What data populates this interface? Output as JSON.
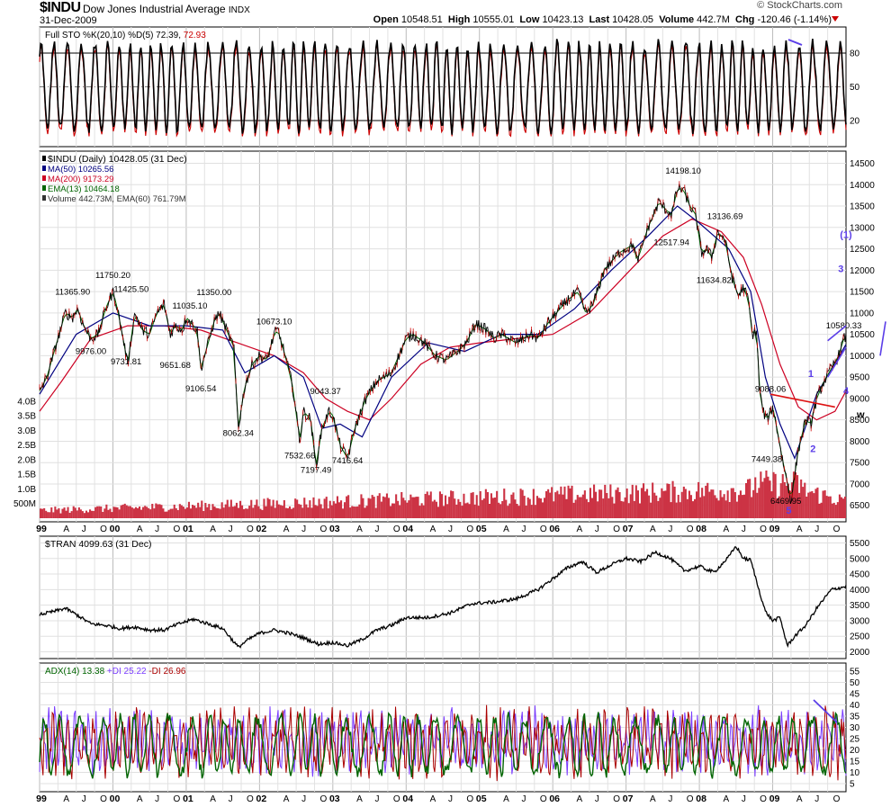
{
  "header": {
    "symbol": "$INDU",
    "name": "Dow Jones Industrial Average",
    "exchange": "INDX",
    "date": "31-Dec-2009",
    "brand": "© StockCharts.com",
    "open_label": "Open",
    "open": "10548.51",
    "high_label": "High",
    "high": "10555.01",
    "low_label": "Low",
    "low": "10423.13",
    "last_label": "Last",
    "last": "10428.05",
    "volume_label": "Volume",
    "volume": "442.7M",
    "chg_label": "Chg",
    "chg": "-120.46 (-1.14%)"
  },
  "colors": {
    "price": "#000000",
    "ma50": "#000080",
    "ma200": "#cc0022",
    "ema13": "#006400",
    "volume": "#cc3344",
    "sto_d": "#cc0000",
    "plus_di": "#7a3cff",
    "minus_di": "#aa0000",
    "adx": "#006400",
    "annotation": "#5b3ee8",
    "trend_red": "#dd1111"
  },
  "chart_data": [
    {
      "type": "line",
      "panel": "stochastic",
      "legend": [
        {
          "text": "Full STO %K(20,10) %D(5) 72.39,",
          "color": "#000000"
        },
        {
          "text": "72.93",
          "color": "#cc0000"
        }
      ],
      "ylim": [
        0,
        100
      ],
      "y_ticks": [
        80,
        50,
        20
      ],
      "series": [
        {
          "name": "%K(20,10)",
          "last": 72.39
        },
        {
          "name": "%D(5)",
          "last": 72.93
        }
      ]
    },
    {
      "type": "line",
      "panel": "price",
      "legend": [
        {
          "text": "$INDU (Daily) 10428.05 (31 Dec)",
          "color": "#000000"
        },
        {
          "text": "MA(50) 10265.56",
          "color": "#000080"
        },
        {
          "text": "MA(200) 9173.29",
          "color": "#cc0022"
        },
        {
          "text": "EMA(13) 10464.18",
          "color": "#006400"
        },
        {
          "text": "Volume 442.73M, EMA(60) 761.79M",
          "color": "#333333"
        }
      ],
      "ylim": [
        6200,
        14700
      ],
      "y_ticks": [
        14500,
        14000,
        13500,
        13000,
        12500,
        12000,
        11500,
        11000,
        10500,
        10000,
        9500,
        9000,
        8500,
        8000,
        7500,
        7000,
        6500
      ],
      "volume_ticks": [
        "4.0B",
        "3.5B",
        "3.0B",
        "2.5B",
        "2.0B",
        "1.5B",
        "1.0B",
        "500M"
      ],
      "volume_tick_values": [
        4.0,
        3.5,
        3.0,
        2.5,
        2.0,
        1.5,
        1.0,
        0.5
      ],
      "x": [
        1999.0,
        1999.1,
        1999.25,
        1999.35,
        1999.45,
        1999.52,
        1999.6,
        1999.7,
        1999.8,
        1999.9,
        2000.0,
        2000.05,
        2000.15,
        2000.2,
        2000.3,
        2000.4,
        2000.5,
        2000.6,
        2000.7,
        2000.78,
        2000.85,
        2000.95,
        2001.0,
        2001.15,
        2001.2,
        2001.3,
        2001.38,
        2001.45,
        2001.55,
        2001.65,
        2001.71,
        2001.8,
        2001.9,
        2002.0,
        2002.1,
        2002.2,
        2002.25,
        2002.35,
        2002.45,
        2002.55,
        2002.6,
        2002.7,
        2002.77,
        2002.85,
        2002.95,
        2003.0,
        2003.1,
        2003.2,
        2003.3,
        2003.45,
        2003.6,
        2003.8,
        2004.0,
        2004.1,
        2004.25,
        2004.4,
        2004.55,
        2004.7,
        2004.82,
        2004.95,
        2005.1,
        2005.2,
        2005.3,
        2005.5,
        2005.7,
        2005.8,
        2005.95,
        2006.2,
        2006.35,
        2006.45,
        2006.55,
        2006.7,
        2006.9,
        2007.1,
        2007.15,
        2007.3,
        2007.45,
        2007.55,
        2007.62,
        2007.7,
        2007.78,
        2007.87,
        2007.95,
        2008.03,
        2008.1,
        2008.17,
        2008.25,
        2008.35,
        2008.45,
        2008.53,
        2008.6,
        2008.67,
        2008.72,
        2008.78,
        2008.82,
        2008.87,
        2008.92,
        2009.0,
        2009.07,
        2009.13,
        2009.18,
        2009.25,
        2009.35,
        2009.45,
        2009.52,
        2009.6,
        2009.7,
        2009.8,
        2009.9,
        2009.97,
        2010.0
      ],
      "values": [
        9180,
        9500,
        10400,
        11000,
        10900,
        11100,
        10700,
        10400,
        10500,
        11100,
        11500,
        11200,
        10300,
        9800,
        11000,
        10600,
        10500,
        11000,
        11200,
        10500,
        10700,
        10600,
        10900,
        10600,
        9700,
        10300,
        10800,
        11000,
        10600,
        10200,
        8300,
        9300,
        9800,
        10000,
        9900,
        10500,
        10600,
        10000,
        9300,
        8000,
        8700,
        8500,
        7400,
        8300,
        8700,
        8600,
        7900,
        7600,
        8300,
        9000,
        9400,
        9600,
        10400,
        10500,
        10300,
        10000,
        9900,
        10100,
        10300,
        10750,
        10600,
        10400,
        10500,
        10300,
        10500,
        10400,
        10800,
        11300,
        11500,
        11000,
        11200,
        12000,
        12400,
        12600,
        12200,
        13000,
        13600,
        13400,
        13300,
        13900,
        13900,
        13500,
        13300,
        12400,
        12500,
        12300,
        12900,
        12700,
        11800,
        11400,
        11600,
        11300,
        10500,
        10600,
        9200,
        8700,
        8500,
        8800,
        8200,
        7600,
        7200,
        6600,
        7800,
        8500,
        8400,
        9000,
        9400,
        9700,
        10000,
        10400,
        10428
      ],
      "ma50_x": [
        1999.0,
        1999.5,
        2000.0,
        2000.5,
        2001.0,
        2001.5,
        2001.8,
        2002.2,
        2002.6,
        2002.85,
        2003.1,
        2003.4,
        2003.8,
        2004.3,
        2004.8,
        2005.3,
        2005.8,
        2006.3,
        2006.8,
        2007.3,
        2007.7,
        2008.0,
        2008.4,
        2008.7,
        2008.9,
        2009.1,
        2009.3,
        2009.6,
        2010.0
      ],
      "ma50_values": [
        9100,
        10500,
        11000,
        10700,
        10700,
        10600,
        9600,
        10000,
        9500,
        8300,
        8400,
        8100,
        9500,
        10300,
        10100,
        10500,
        10500,
        11100,
        12000,
        12800,
        13500,
        13100,
        12500,
        11500,
        9500,
        8400,
        7600,
        9100,
        10265
      ],
      "ma200_x": [
        1999.0,
        1999.3,
        1999.7,
        2000.2,
        2000.7,
        2001.2,
        2001.7,
        2002.2,
        2002.6,
        2002.9,
        2003.2,
        2003.5,
        2003.8,
        2004.2,
        2004.6,
        2005.0,
        2005.5,
        2006.0,
        2006.5,
        2007.0,
        2007.5,
        2007.9,
        2008.3,
        2008.6,
        2008.85,
        2009.1,
        2009.35,
        2009.6,
        2009.85,
        2010.0
      ],
      "ma200_values": [
        8700,
        9400,
        10400,
        10700,
        10700,
        10600,
        10300,
        10000,
        9600,
        9000,
        8700,
        8500,
        9000,
        9800,
        10200,
        10300,
        10400,
        10500,
        11000,
        11900,
        12800,
        13200,
        12900,
        12300,
        11200,
        9800,
        8800,
        8500,
        8700,
        9173
      ],
      "price_annotations": [
        {
          "label": "11365.90",
          "x": 1999.45,
          "value": 11366
        },
        {
          "label": "11750.20",
          "x": 2000.0,
          "value": 11750
        },
        {
          "label": "11425.50",
          "x": 2000.25,
          "value": 11426
        },
        {
          "label": "11035.10",
          "x": 2001.05,
          "value": 11035
        },
        {
          "label": "11350.00",
          "x": 2001.38,
          "value": 11350
        },
        {
          "label": "9976.00",
          "x": 1999.7,
          "value": 9976
        },
        {
          "label": "9731.81",
          "x": 2000.18,
          "value": 9732
        },
        {
          "label": "9651.68",
          "x": 2000.85,
          "value": 9652
        },
        {
          "label": "9106.54",
          "x": 2001.2,
          "value": 9107
        },
        {
          "label": "10673.10",
          "x": 2002.2,
          "value": 10673
        },
        {
          "label": "8062.34",
          "x": 2001.71,
          "value": 8062
        },
        {
          "label": "9043.37",
          "x": 2002.9,
          "value": 9043
        },
        {
          "label": "7532.66",
          "x": 2002.55,
          "value": 7533
        },
        {
          "label": "7197.49",
          "x": 2002.77,
          "value": 7197
        },
        {
          "label": "7416.64",
          "x": 2003.2,
          "value": 7417
        },
        {
          "label": "14198.10",
          "x": 2007.78,
          "value": 14198
        },
        {
          "label": "13136.69",
          "x": 2008.35,
          "value": 13137
        },
        {
          "label": "12517.94",
          "x": 2007.62,
          "value": 12518
        },
        {
          "label": "11634.82",
          "x": 2008.2,
          "value": 11635
        },
        {
          "label": "9088.06",
          "x": 2008.97,
          "value": 9088
        },
        {
          "label": "7449.38",
          "x": 2008.92,
          "value": 7449
        },
        {
          "label": "6469.95",
          "x": 2009.18,
          "value": 6470
        },
        {
          "label": "10580.33",
          "x": 2009.97,
          "value": 10580
        }
      ],
      "wave_labels": [
        {
          "label": "1",
          "x": 2009.52,
          "value": 9500
        },
        {
          "label": "2",
          "x": 2009.55,
          "value": 7750
        },
        {
          "label": "3",
          "x": 2009.93,
          "value": 11950
        },
        {
          "label": "4",
          "x": 2010.0,
          "value": 9100
        },
        {
          "label": "5",
          "x": 2009.22,
          "value": 6300
        },
        {
          "label": "w",
          "x": 2010.2,
          "value": 8550
        },
        {
          "label": "(1)",
          "x": 2010.0,
          "value": 12750
        }
      ]
    },
    {
      "type": "line",
      "panel": "transports",
      "legend": [
        {
          "text": "$TRAN 4099.63 (31 Dec)",
          "color": "#000000"
        }
      ],
      "ylim": [
        1900,
        5600
      ],
      "y_ticks": [
        5500,
        5000,
        4500,
        4000,
        3500,
        3000,
        2500,
        2000
      ],
      "x": [
        1999.0,
        1999.2,
        1999.35,
        1999.5,
        1999.7,
        1999.9,
        2000.1,
        2000.3,
        2000.5,
        2000.7,
        2000.9,
        2001.1,
        2001.3,
        2001.5,
        2001.71,
        2001.85,
        2002.0,
        2002.2,
        2002.4,
        2002.6,
        2002.8,
        2003.0,
        2003.2,
        2003.4,
        2003.6,
        2003.8,
        2004.0,
        2004.3,
        2004.6,
        2004.9,
        2005.2,
        2005.5,
        2005.8,
        2006.0,
        2006.2,
        2006.4,
        2006.6,
        2006.8,
        2007.0,
        2007.2,
        2007.4,
        2007.6,
        2007.8,
        2008.0,
        2008.2,
        2008.4,
        2008.5,
        2008.6,
        2008.7,
        2008.8,
        2008.9,
        2009.0,
        2009.1,
        2009.2,
        2009.3,
        2009.45,
        2009.6,
        2009.8,
        2010.0
      ],
      "values": [
        3200,
        3300,
        3400,
        3200,
        2900,
        2850,
        2750,
        2800,
        2700,
        2700,
        2900,
        3050,
        2900,
        2750,
        2150,
        2400,
        2600,
        2700,
        2600,
        2450,
        2250,
        2300,
        2200,
        2400,
        2700,
        2850,
        3100,
        3100,
        3250,
        3550,
        3600,
        3700,
        4000,
        4350,
        4700,
        4900,
        4550,
        4800,
        5000,
        4900,
        5200,
        5000,
        4600,
        4750,
        4550,
        5050,
        5400,
        5000,
        4950,
        4100,
        3300,
        3000,
        3100,
        2200,
        2500,
        2850,
        3400,
        4000,
        4100
      ]
    },
    {
      "type": "line",
      "panel": "adx",
      "legend": [
        {
          "text": "ADX(14) 13.38",
          "color": "#006400"
        },
        {
          "text": "+DI 25.22",
          "color": "#7a3cff"
        },
        {
          "text": "-DI 26.96",
          "color": "#aa0000"
        }
      ],
      "ylim": [
        3,
        57
      ],
      "y_ticks": [
        55,
        50,
        45,
        40,
        35,
        30,
        25,
        20,
        15,
        10,
        5
      ],
      "series": [
        {
          "name": "ADX(14)",
          "last": 13.38
        },
        {
          "name": "+DI",
          "last": 25.22
        },
        {
          "name": "-DI",
          "last": 26.96
        }
      ]
    }
  ],
  "x_axis": {
    "labels": [
      {
        "t": 1999.0,
        "label": "99",
        "year": true
      },
      {
        "t": 1999.25,
        "label": "A"
      },
      {
        "t": 1999.5,
        "label": "J"
      },
      {
        "t": 1999.75,
        "label": "O"
      },
      {
        "t": 2000.0,
        "label": "00",
        "year": true
      },
      {
        "t": 2000.25,
        "label": "A"
      },
      {
        "t": 2000.5,
        "label": "J"
      },
      {
        "t": 2000.75,
        "label": "O"
      },
      {
        "t": 2001.0,
        "label": "01",
        "year": true
      },
      {
        "t": 2001.25,
        "label": "A"
      },
      {
        "t": 2001.5,
        "label": "J"
      },
      {
        "t": 2001.75,
        "label": "O"
      },
      {
        "t": 2002.0,
        "label": "02",
        "year": true
      },
      {
        "t": 2002.25,
        "label": "A"
      },
      {
        "t": 2002.5,
        "label": "J"
      },
      {
        "t": 2002.75,
        "label": "O"
      },
      {
        "t": 2003.0,
        "label": "03",
        "year": true
      },
      {
        "t": 2003.25,
        "label": "A"
      },
      {
        "t": 2003.5,
        "label": "J"
      },
      {
        "t": 2003.75,
        "label": "O"
      },
      {
        "t": 2004.0,
        "label": "04",
        "year": true
      },
      {
        "t": 2004.25,
        "label": "A"
      },
      {
        "t": 2004.5,
        "label": "J"
      },
      {
        "t": 2004.75,
        "label": "O"
      },
      {
        "t": 2005.0,
        "label": "05",
        "year": true
      },
      {
        "t": 2005.25,
        "label": "A"
      },
      {
        "t": 2005.5,
        "label": "J"
      },
      {
        "t": 2005.75,
        "label": "O"
      },
      {
        "t": 2006.0,
        "label": "06",
        "year": true
      },
      {
        "t": 2006.25,
        "label": "A"
      },
      {
        "t": 2006.5,
        "label": "J"
      },
      {
        "t": 2006.75,
        "label": "O"
      },
      {
        "t": 2007.0,
        "label": "07",
        "year": true
      },
      {
        "t": 2007.25,
        "label": "A"
      },
      {
        "t": 2007.5,
        "label": "J"
      },
      {
        "t": 2007.75,
        "label": "O"
      },
      {
        "t": 2008.0,
        "label": "08",
        "year": true
      },
      {
        "t": 2008.25,
        "label": "A"
      },
      {
        "t": 2008.5,
        "label": "J"
      },
      {
        "t": 2008.75,
        "label": "O"
      },
      {
        "t": 2009.0,
        "label": "09",
        "year": true
      },
      {
        "t": 2009.25,
        "label": "A"
      },
      {
        "t": 2009.5,
        "label": "J"
      },
      {
        "t": 2009.75,
        "label": "O"
      }
    ]
  }
}
